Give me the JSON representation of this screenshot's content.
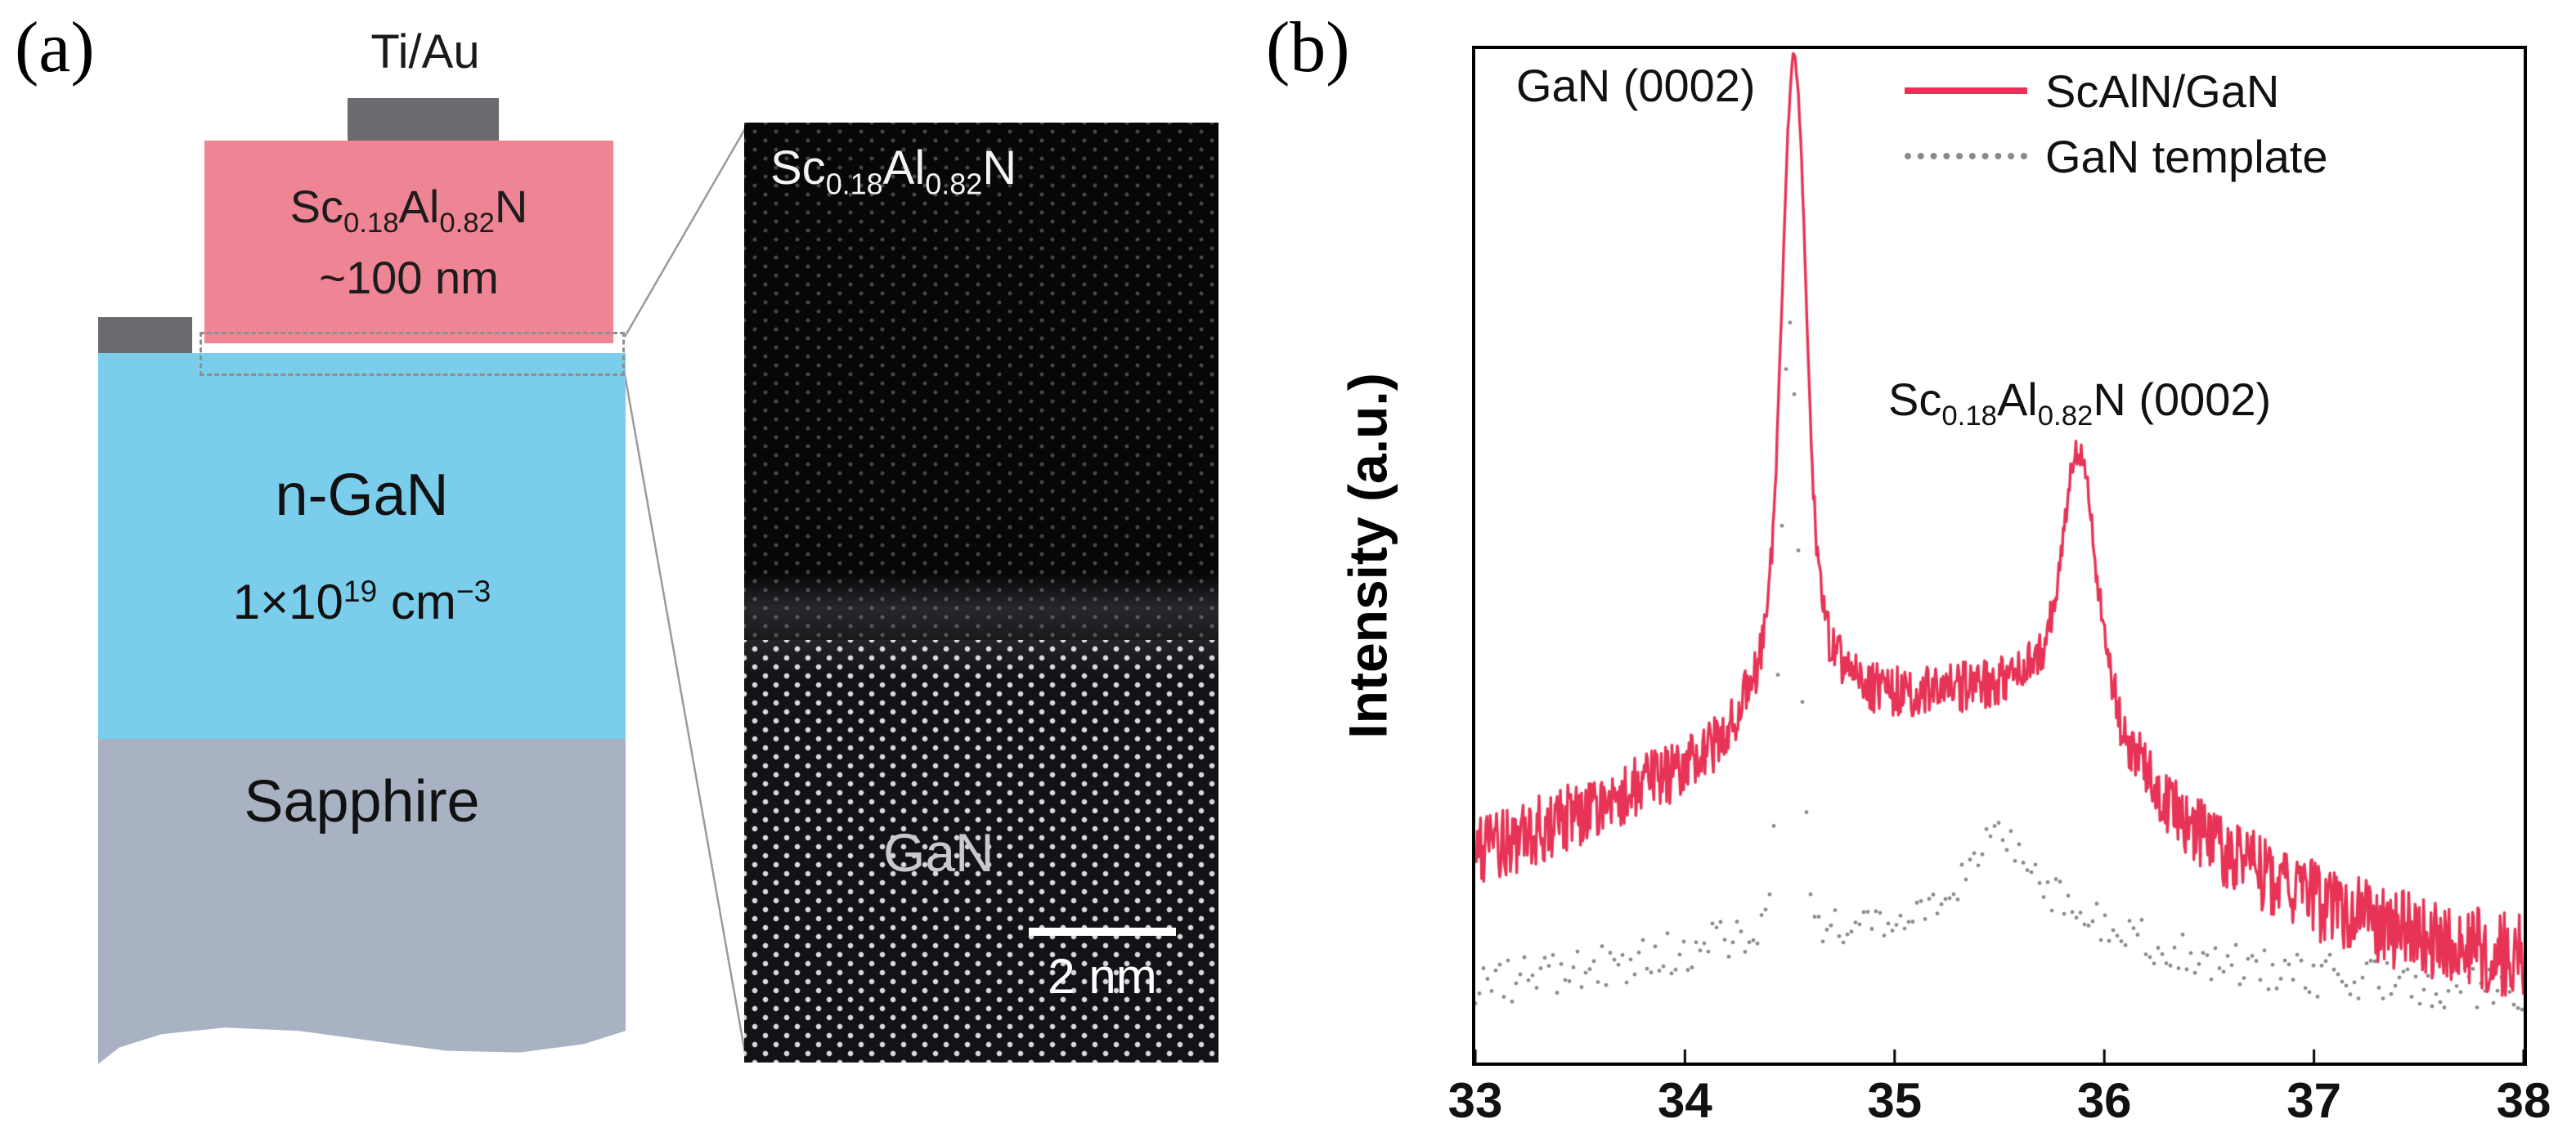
{
  "panel_a": {
    "label": "(a)",
    "contact_label": "Ti/Au",
    "scaln": {
      "p1": "Sc",
      "s1": "0.18",
      "p2": "Al",
      "s2": "0.82",
      "p3": "N",
      "thickness": "~100 nm"
    },
    "ngan": {
      "name": "n-GaN",
      "doping_base": "1×10",
      "doping_exp": "19",
      "doping_unit": " cm",
      "doping_unit_exp": "−3"
    },
    "sapphire_label": "Sapphire",
    "tem": {
      "top_label": {
        "p1": "Sc",
        "s1": "0.18",
        "p2": "Al",
        "s2": "0.82",
        "p3": "N"
      },
      "bottom_label": "GaN",
      "scale_bar": "2 nm"
    },
    "colors": {
      "scaln": "#ee8494",
      "ngan": "#7bcdec",
      "sapphire": "#a9b2c3",
      "contact": "#696b6e"
    }
  },
  "panel_b": {
    "label": "(b)"
  },
  "chart_data": {
    "type": "line",
    "title": "XRD 2theta scan",
    "xlabel": "",
    "ylabel": "Intensity (a.u.)",
    "xlim": [
      33,
      38
    ],
    "x_ticks": [
      33,
      34,
      35,
      36,
      37,
      38
    ],
    "y_scale": "arbitrary (log-like), no tick labels",
    "grid": false,
    "legend_position": "top-right inside",
    "legend": [
      {
        "label": "ScAlN/GaN",
        "color": "#e73355",
        "style": "solid"
      },
      {
        "label": "GaN template",
        "color": "#8a8a8a",
        "style": "dotted"
      }
    ],
    "annotations": [
      {
        "text": "GaN (0002)",
        "x": 34.5,
        "note": "labels shared GaN peak"
      },
      {
        "text": "Sc0.18Al0.82N (0002)",
        "x": 35.9,
        "note": "labels ScAlN peak",
        "parts": {
          "p1": "Sc",
          "s1": "0.18",
          "p2": "Al",
          "s2": "0.82",
          "p3": "N",
          "suffix": " (0002)"
        }
      }
    ],
    "peak_positions": {
      "GaN_0002_2theta_deg": 34.5,
      "ScAlN_0002_2theta_deg": 35.9
    },
    "series": [
      {
        "name": "GaN template",
        "color": "#8a8a8a",
        "style": "dotted",
        "baseline": [
          [
            33,
            0.07
          ],
          [
            33.5,
            0.085
          ],
          [
            34,
            0.105
          ],
          [
            34.3,
            0.12
          ],
          [
            34.6,
            0.125
          ],
          [
            35,
            0.13
          ],
          [
            35.2,
            0.15
          ],
          [
            35.5,
            0.175
          ],
          [
            35.8,
            0.15
          ],
          [
            36.1,
            0.12
          ],
          [
            36.5,
            0.095
          ],
          [
            37,
            0.08
          ],
          [
            37.5,
            0.07
          ],
          [
            38,
            0.065
          ]
        ],
        "peaks": [
          {
            "center": 34.5,
            "height": 0.62,
            "sigma": 0.042
          },
          {
            "center": 35.5,
            "height": 0.05,
            "sigma": 0.13
          }
        ],
        "noise": {
          "base": 0.005,
          "scale": 0.02
        }
      },
      {
        "name": "ScAlN/GaN",
        "color": "#e73355",
        "style": "solid",
        "baseline": [
          [
            33,
            0.2
          ],
          [
            33.4,
            0.235
          ],
          [
            33.8,
            0.27
          ],
          [
            34.1,
            0.3
          ],
          [
            34.35,
            0.33
          ],
          [
            34.6,
            0.35
          ],
          [
            35.0,
            0.365
          ],
          [
            35.3,
            0.37
          ],
          [
            35.6,
            0.375
          ],
          [
            35.9,
            0.345
          ],
          [
            36.1,
            0.3
          ],
          [
            36.3,
            0.25
          ],
          [
            36.6,
            0.2
          ],
          [
            37.0,
            0.155
          ],
          [
            37.4,
            0.125
          ],
          [
            37.7,
            0.11
          ],
          [
            38,
            0.1
          ]
        ],
        "peaks": [
          {
            "center": 34.52,
            "height": 0.56,
            "sigma": 0.055
          },
          {
            "center": 34.52,
            "height": 0.1,
            "sigma": 0.17
          },
          {
            "center": 35.88,
            "height": 0.21,
            "sigma": 0.075
          },
          {
            "center": 35.88,
            "height": 0.05,
            "sigma": 0.18
          }
        ],
        "noise": {
          "base": 0.008,
          "scale": 0.045
        }
      }
    ]
  }
}
